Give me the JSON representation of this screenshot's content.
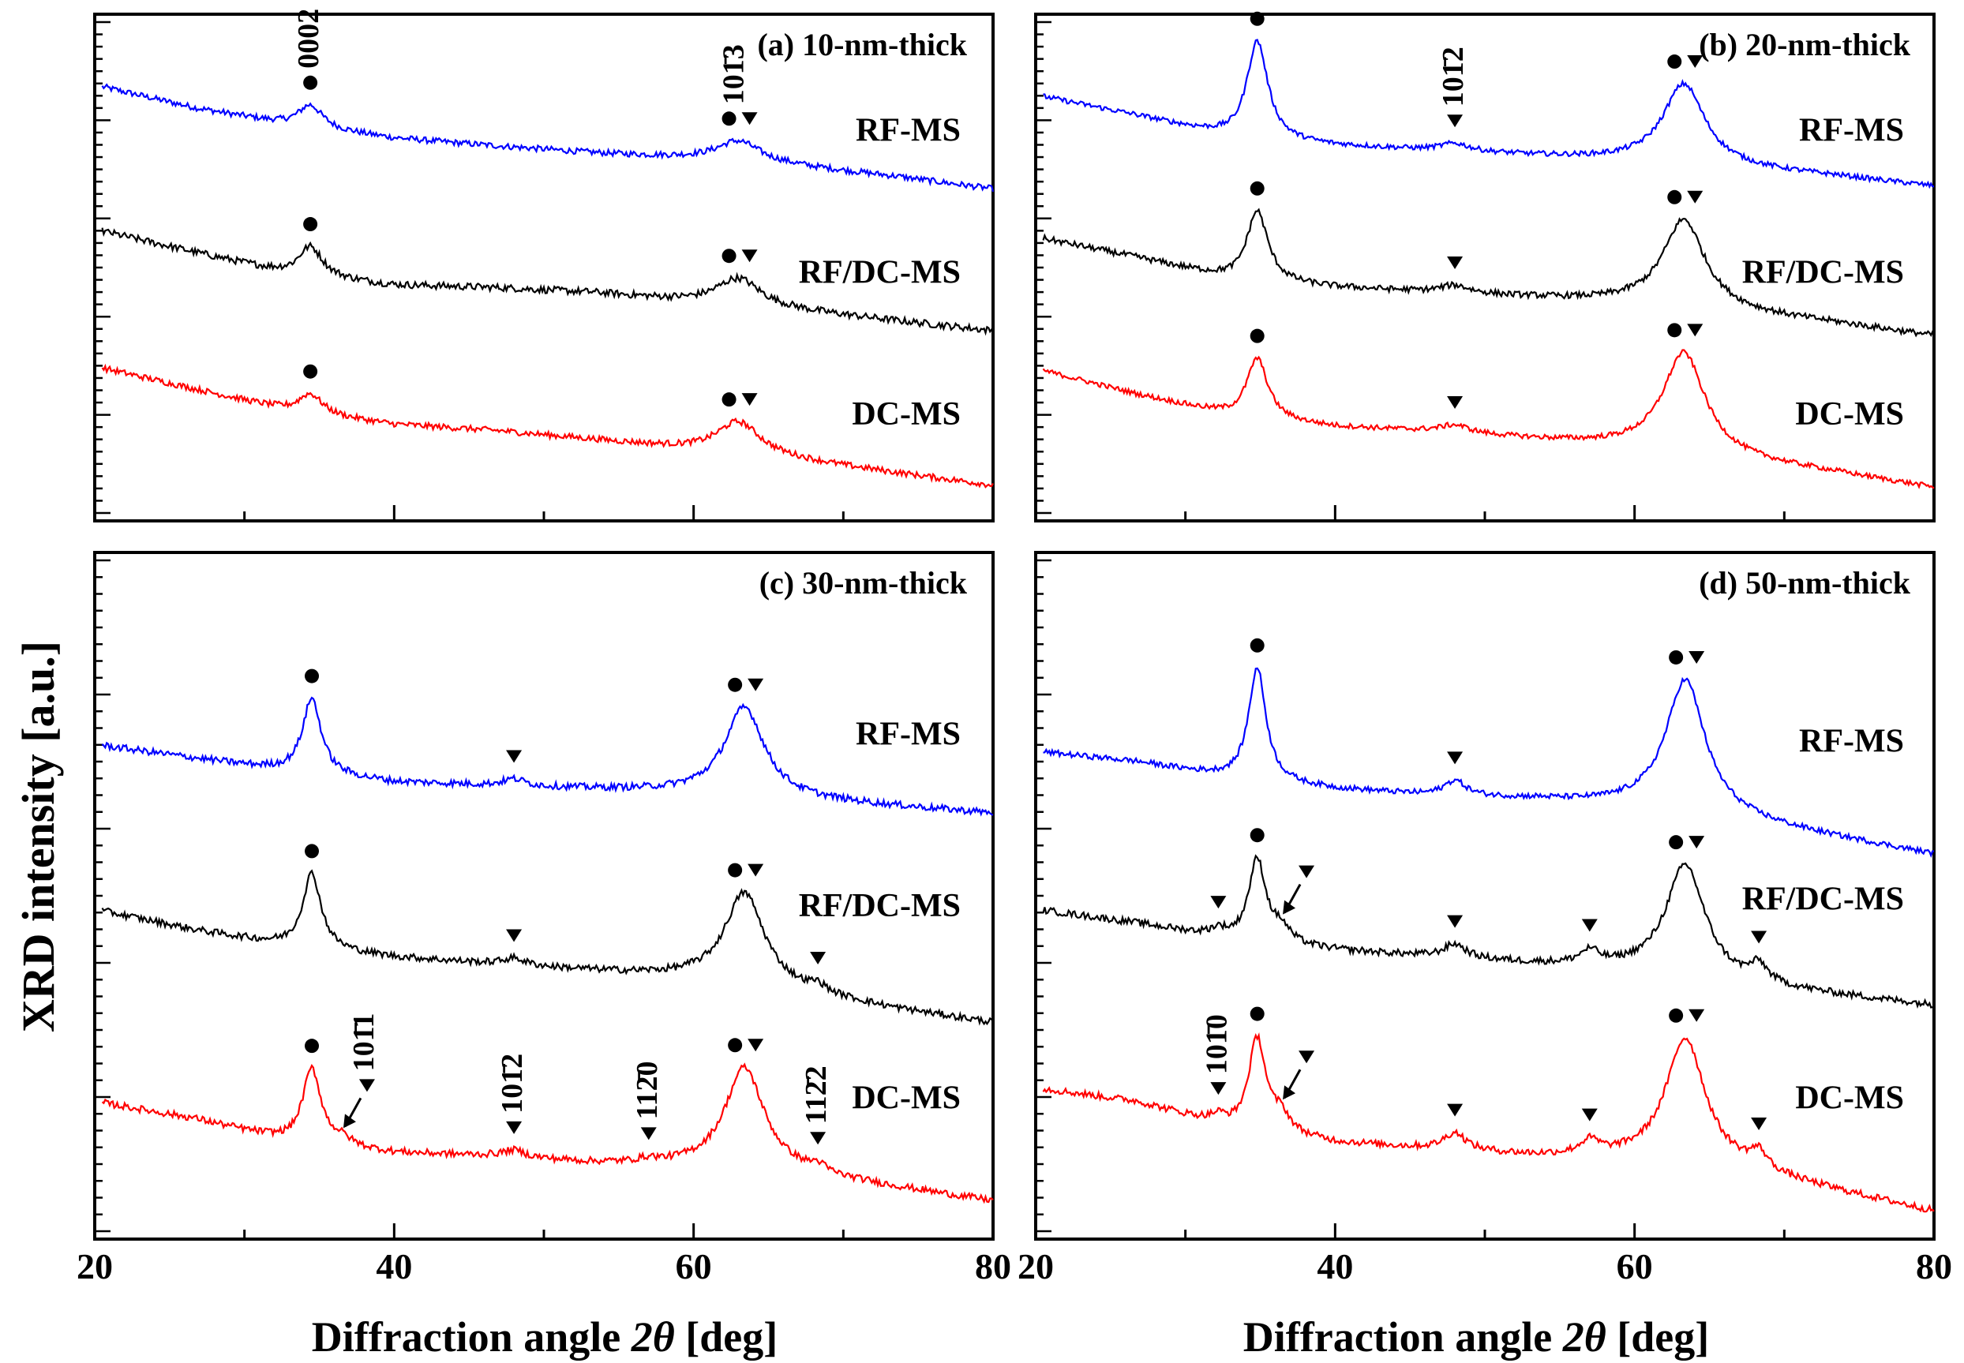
{
  "figure": {
    "ylabel": "XRD intensity [a.u.]",
    "xlabel_prefix": "Diffraction angle ",
    "xlabel_symbol": "2θ",
    "xlabel_suffix": " [deg]"
  },
  "chart_data": [
    {
      "type": "line",
      "id": "a",
      "title": "(a) 10-nm-thick",
      "xlabel": "",
      "ylabel": "XRD intensity [a.u.]",
      "xlim": [
        20,
        80
      ],
      "xticks": [],
      "ylim": [
        0,
        10
      ],
      "series": [
        {
          "name": "RF-MS",
          "color": "#0000ff",
          "offset": 6.6,
          "bg": [
            2.0,
            1.55,
            1.2,
            0.95,
            0.8,
            0.66,
            0.55,
            0.4,
            0.2,
            -0.05
          ],
          "peaks": [
            [
              34.4,
              0.45,
              1.0
            ],
            [
              63,
              0.42,
              1.8
            ]
          ],
          "noise": 0.06
        },
        {
          "name": "RF/DC-MS",
          "color": "#000000",
          "offset": 3.8,
          "bg": [
            1.95,
            1.5,
            1.05,
            0.85,
            0.8,
            0.7,
            0.52,
            0.35,
            0.15,
            -0.05
          ],
          "peaks": [
            [
              34.4,
              0.6,
              1.0
            ],
            [
              63,
              0.55,
              1.8
            ]
          ],
          "noise": 0.07
        },
        {
          "name": "DC-MS",
          "color": "#ff0000",
          "offset": 1.0,
          "bg": [
            2.05,
            1.6,
            1.15,
            0.9,
            0.78,
            0.6,
            0.4,
            0.2,
            -0.05,
            -0.3
          ],
          "peaks": [
            [
              34.4,
              0.4,
              1.0
            ],
            [
              63,
              0.65,
              1.8
            ]
          ],
          "noise": 0.06
        }
      ],
      "annotations": [
        {
          "text": "0002",
          "angle": 34.4,
          "series": "RF-MS",
          "markers": "c",
          "rotate": true
        },
        {
          "text": "101̄3",
          "angle": 63,
          "series": "RF-MS",
          "markers": "ct",
          "rotate": true
        },
        {
          "angle": 34.4,
          "series": "RF/DC-MS",
          "markers": "c"
        },
        {
          "angle": 63,
          "series": "RF/DC-MS",
          "markers": "ct"
        },
        {
          "angle": 34.4,
          "series": "DC-MS",
          "markers": "c"
        },
        {
          "angle": 63,
          "series": "DC-MS",
          "markers": "ct"
        }
      ]
    },
    {
      "type": "line",
      "id": "b",
      "title": "(b) 20-nm-thick",
      "xlabel": "",
      "ylabel": "",
      "xlim": [
        20,
        80
      ],
      "xticks": [],
      "ylim": [
        0,
        10
      ],
      "series": [
        {
          "name": "RF-MS",
          "color": "#0000ff",
          "offset": 6.6,
          "bg": [
            1.8,
            1.4,
            0.95,
            0.8,
            0.7,
            0.6,
            0.5,
            0.35,
            0.2,
            0.0
          ],
          "peaks": [
            [
              34.8,
              1.95,
              0.85
            ],
            [
              48,
              0.15,
              1.2
            ],
            [
              63.3,
              1.6,
              1.7
            ]
          ],
          "noise": 0.05
        },
        {
          "name": "RF/DC-MS",
          "color": "#000000",
          "offset": 3.8,
          "bg": [
            1.8,
            1.4,
            0.95,
            0.8,
            0.7,
            0.6,
            0.5,
            0.3,
            0.1,
            -0.15
          ],
          "peaks": [
            [
              34.8,
              1.4,
              0.85
            ],
            [
              48,
              0.15,
              1.2
            ],
            [
              63.3,
              1.75,
              1.7
            ]
          ],
          "noise": 0.06
        },
        {
          "name": "DC-MS",
          "color": "#ff0000",
          "offset": 1.0,
          "bg": [
            2.0,
            1.5,
            1.05,
            0.85,
            0.75,
            0.6,
            0.45,
            0.2,
            -0.05,
            -0.35
          ],
          "peaks": [
            [
              34.8,
              1.2,
              0.85
            ],
            [
              48,
              0.15,
              1.2
            ],
            [
              63.3,
              2.0,
              1.7
            ]
          ],
          "noise": 0.05
        }
      ],
      "annotations": [
        {
          "angle": 34.8,
          "series": "RF-MS",
          "markers": "c"
        },
        {
          "text": "101̄2",
          "angle": 48,
          "series": "RF-MS",
          "markers": "t",
          "rotate": true
        },
        {
          "angle": 63.3,
          "series": "RF-MS",
          "markers": "ct"
        },
        {
          "angle": 34.8,
          "series": "RF/DC-MS",
          "markers": "c"
        },
        {
          "angle": 48,
          "series": "RF/DC-MS",
          "markers": "t"
        },
        {
          "angle": 63.3,
          "series": "RF/DC-MS",
          "markers": "ct"
        },
        {
          "angle": 34.8,
          "series": "DC-MS",
          "markers": "c"
        },
        {
          "angle": 48,
          "series": "DC-MS",
          "markers": "t"
        },
        {
          "angle": 63.3,
          "series": "DC-MS",
          "markers": "ct"
        }
      ]
    },
    {
      "type": "line",
      "id": "c",
      "title": "(c) 30-nm-thick",
      "xlabel": "Diffraction angle 2θ [deg]",
      "ylabel": "",
      "xlim": [
        20,
        80
      ],
      "xticks": [
        20,
        40,
        60,
        80
      ],
      "ylim": [
        0,
        10
      ],
      "series": [
        {
          "name": "RF-MS",
          "color": "#0000ff",
          "offset": 6.3,
          "bg": [
            0.9,
            0.7,
            0.5,
            0.35,
            0.3,
            0.25,
            0.2,
            0.1,
            0.0,
            -0.1
          ],
          "peaks": [
            [
              34.5,
              1.1,
              0.75
            ],
            [
              48,
              0.1,
              0.9
            ],
            [
              63.4,
              1.3,
              1.6
            ]
          ],
          "noise": 0.05
        },
        {
          "name": "RF/DC-MS",
          "color": "#000000",
          "offset": 3.8,
          "bg": [
            1.0,
            0.7,
            0.45,
            0.3,
            0.2,
            0.1,
            0.0,
            -0.2,
            -0.45,
            -0.65
          ],
          "peaks": [
            [
              34.5,
              1.1,
              0.75
            ],
            [
              48,
              0.1,
              0.9
            ],
            [
              63.4,
              1.35,
              1.6
            ],
            [
              68.3,
              0.1,
              0.6
            ]
          ],
          "noise": 0.05
        },
        {
          "name": "DC-MS",
          "color": "#ff0000",
          "offset": 1.0,
          "bg": [
            1.0,
            0.75,
            0.4,
            0.25,
            0.2,
            0.1,
            0.05,
            -0.05,
            -0.25,
            -0.45
          ],
          "peaks": [
            [
              34.5,
              1.1,
              0.75
            ],
            [
              36.5,
              0.1,
              0.8
            ],
            [
              48,
              0.1,
              0.9
            ],
            [
              57,
              0.05,
              0.8
            ],
            [
              63.4,
              1.5,
              1.6
            ],
            [
              68.3,
              0.1,
              0.6
            ]
          ],
          "noise": 0.05
        }
      ],
      "annotations": [
        {
          "angle": 34.5,
          "series": "RF-MS",
          "markers": "c"
        },
        {
          "angle": 48,
          "series": "RF-MS",
          "markers": "t"
        },
        {
          "angle": 63.4,
          "series": "RF-MS",
          "markers": "ct"
        },
        {
          "angle": 34.5,
          "series": "RF/DC-MS",
          "markers": "c"
        },
        {
          "angle": 48,
          "series": "RF/DC-MS",
          "markers": "t"
        },
        {
          "angle": 63.4,
          "series": "RF/DC-MS",
          "markers": "ct"
        },
        {
          "angle": 68.3,
          "series": "RF/DC-MS",
          "markers": "t"
        },
        {
          "angle": 34.5,
          "series": "DC-MS",
          "markers": "c"
        },
        {
          "text": "101̄1",
          "angle": 36.5,
          "series": "DC-MS",
          "markers": "t",
          "rotate": true,
          "arrow": true
        },
        {
          "text": "101̄2",
          "angle": 48,
          "series": "DC-MS",
          "markers": "t",
          "rotate": true
        },
        {
          "text": "112̄0",
          "angle": 57,
          "series": "DC-MS",
          "markers": "t",
          "rotate": true
        },
        {
          "angle": 63.4,
          "series": "DC-MS",
          "markers": "ct"
        },
        {
          "text": "112̄2",
          "angle": 68.3,
          "series": "DC-MS",
          "markers": "t",
          "rotate": true
        }
      ]
    },
    {
      "type": "line",
      "id": "d",
      "title": "(d) 50-nm-thick",
      "xlabel": "Diffraction angle 2θ [deg]",
      "ylabel": "",
      "xlim": [
        20,
        80
      ],
      "xticks": [
        20,
        40,
        60,
        80
      ],
      "ylim": [
        0,
        10
      ],
      "series": [
        {
          "name": "RF-MS",
          "color": "#0000ff",
          "offset": 6.2,
          "bg": [
            0.9,
            0.75,
            0.5,
            0.35,
            0.25,
            0.2,
            0.1,
            -0.1,
            -0.35,
            -0.6
          ],
          "peaks": [
            [
              34.8,
              1.65,
              0.7
            ],
            [
              48,
              0.22,
              0.9
            ],
            [
              63.4,
              1.95,
              1.6
            ]
          ],
          "noise": 0.04
        },
        {
          "name": "RF/DC-MS",
          "color": "#000000",
          "offset": 3.9,
          "bg": [
            0.9,
            0.7,
            0.45,
            0.3,
            0.2,
            0.1,
            0.0,
            -0.2,
            -0.35,
            -0.5
          ],
          "peaks": [
            [
              32.2,
              0.1,
              0.6
            ],
            [
              34.8,
              1.2,
              0.7
            ],
            [
              36.4,
              0.2,
              0.7
            ],
            [
              48,
              0.2,
              0.9
            ],
            [
              57,
              0.2,
              0.8
            ],
            [
              63.4,
              1.65,
              1.6
            ],
            [
              68.3,
              0.25,
              0.7
            ]
          ],
          "noise": 0.05
        },
        {
          "name": "DC-MS",
          "color": "#ff0000",
          "offset": 1.0,
          "bg": [
            1.2,
            1.0,
            0.6,
            0.4,
            0.3,
            0.2,
            0.15,
            0.0,
            -0.3,
            -0.6
          ],
          "peaks": [
            [
              32.2,
              0.1,
              0.6
            ],
            [
              34.8,
              1.35,
              0.7
            ],
            [
              36.4,
              0.25,
              0.7
            ],
            [
              48,
              0.25,
              0.9
            ],
            [
              57,
              0.2,
              0.8
            ],
            [
              63.4,
              1.85,
              1.6
            ],
            [
              68.3,
              0.25,
              0.7
            ]
          ],
          "noise": 0.05
        }
      ],
      "annotations": [
        {
          "angle": 34.8,
          "series": "RF-MS",
          "markers": "c"
        },
        {
          "angle": 48,
          "series": "RF-MS",
          "markers": "t"
        },
        {
          "angle": 63.4,
          "series": "RF-MS",
          "markers": "ct"
        },
        {
          "angle": 32.2,
          "series": "RF/DC-MS",
          "markers": "t"
        },
        {
          "angle": 34.8,
          "series": "RF/DC-MS",
          "markers": "c"
        },
        {
          "angle": 36.4,
          "series": "RF/DC-MS",
          "markers": "t",
          "arrow": true
        },
        {
          "angle": 48,
          "series": "RF/DC-MS",
          "markers": "t"
        },
        {
          "angle": 57,
          "series": "RF/DC-MS",
          "markers": "t"
        },
        {
          "angle": 63.4,
          "series": "RF/DC-MS",
          "markers": "ct"
        },
        {
          "angle": 68.3,
          "series": "RF/DC-MS",
          "markers": "t"
        },
        {
          "text": "101̄0",
          "angle": 32.2,
          "series": "DC-MS",
          "markers": "t",
          "rotate": true
        },
        {
          "angle": 34.8,
          "series": "DC-MS",
          "markers": "c"
        },
        {
          "angle": 36.4,
          "series": "DC-MS",
          "markers": "t",
          "arrow": true
        },
        {
          "angle": 48,
          "series": "DC-MS",
          "markers": "t"
        },
        {
          "angle": 57,
          "series": "DC-MS",
          "markers": "t"
        },
        {
          "angle": 63.4,
          "series": "DC-MS",
          "markers": "ct"
        },
        {
          "angle": 68.3,
          "series": "DC-MS",
          "markers": "t"
        }
      ]
    }
  ]
}
